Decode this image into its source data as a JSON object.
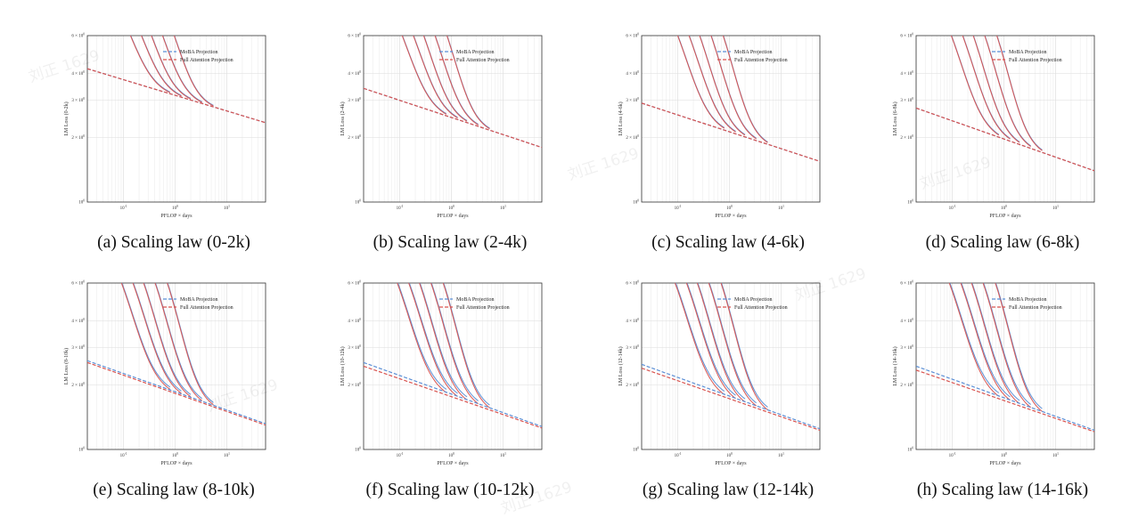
{
  "figure": {
    "panels": [
      {
        "caption": "(a) Scaling law (0-2k)"
      },
      {
        "caption": "(b) Scaling law (2-4k)"
      },
      {
        "caption": "(c) Scaling law (4-6k)"
      },
      {
        "caption": "(d) Scaling law (6-8k)"
      },
      {
        "caption": "(e) Scaling law (8-10k)"
      },
      {
        "caption": "(f) Scaling law (10-12k)"
      },
      {
        "caption": "(g) Scaling law (12-14k)"
      },
      {
        "caption": "(h) Scaling law (14-16k)"
      }
    ],
    "watermark": "刘正 1629"
  },
  "chart_data": [
    {
      "type": "line",
      "caption": "(a) Scaling law (0-2k)",
      "xlabel": "PFLOP × days",
      "ylabel": "LM Loss (0-2k)",
      "xscale": "log",
      "yscale": "log",
      "x_ticks": [
        "10^-1",
        "10^0",
        "10^1"
      ],
      "y_ticks": [
        "10^0",
        "2 × 10^0",
        "3 × 10^0",
        "4 × 10^0",
        "6 × 10^0"
      ],
      "ylim": [
        1,
        6
      ],
      "grid": true,
      "legend": "top-right",
      "series": [
        {
          "name": "MoBA Projection",
          "color": "#5a8fd6",
          "values_at_xlim": [
            4.2,
            2.35
          ]
        },
        {
          "name": "Full Attention Projection",
          "color": "#d9534f",
          "values_at_xlim": [
            4.2,
            2.35
          ]
        }
      ]
    },
    {
      "type": "line",
      "caption": "(b) Scaling law (2-4k)",
      "xlabel": "PFLOP × days",
      "ylabel": "LM Loss (2-4k)",
      "xscale": "log",
      "yscale": "log",
      "x_ticks": [
        "10^-1",
        "10^0",
        "10^1"
      ],
      "y_ticks": [
        "10^0",
        "2 × 10^0",
        "3 × 10^0",
        "4 × 10^0",
        "6 × 10^0"
      ],
      "ylim": [
        1,
        6
      ],
      "grid": true,
      "legend": "top-right",
      "series": [
        {
          "name": "MoBA Projection",
          "color": "#5a8fd6",
          "values_at_xlim": [
            3.4,
            1.8
          ]
        },
        {
          "name": "Full Attention Projection",
          "color": "#d9534f",
          "values_at_xlim": [
            3.4,
            1.8
          ]
        }
      ]
    },
    {
      "type": "line",
      "caption": "(c) Scaling law (4-6k)",
      "xlabel": "PFLOP × days",
      "ylabel": "LM Loss (4-6k)",
      "xscale": "log",
      "yscale": "log",
      "x_ticks": [
        "10^-1",
        "10^0",
        "10^1"
      ],
      "y_ticks": [
        "10^0",
        "2 × 10^0",
        "3 × 10^0",
        "4 × 10^0",
        "6 × 10^0"
      ],
      "ylim": [
        1,
        6
      ],
      "grid": true,
      "legend": "top-right",
      "series": [
        {
          "name": "MoBA Projection",
          "color": "#5a8fd6",
          "values_at_xlim": [
            2.9,
            1.55
          ]
        },
        {
          "name": "Full Attention Projection",
          "color": "#d9534f",
          "values_at_xlim": [
            2.9,
            1.55
          ]
        }
      ]
    },
    {
      "type": "line",
      "caption": "(d) Scaling law (6-8k)",
      "xlabel": "PFLOP × days",
      "ylabel": "LM Loss (6-8k)",
      "xscale": "log",
      "yscale": "log",
      "x_ticks": [
        "10^-1",
        "10^0",
        "10^1"
      ],
      "y_ticks": [
        "10^0",
        "2 × 10^0",
        "3 × 10^0",
        "4 × 10^0",
        "6 × 10^0"
      ],
      "ylim": [
        1,
        6
      ],
      "grid": true,
      "legend": "top-right",
      "series": [
        {
          "name": "MoBA Projection",
          "color": "#5a8fd6",
          "values_at_xlim": [
            2.75,
            1.4
          ]
        },
        {
          "name": "Full Attention Projection",
          "color": "#d9534f",
          "values_at_xlim": [
            2.75,
            1.4
          ]
        }
      ]
    },
    {
      "type": "line",
      "caption": "(e) Scaling law (8-10k)",
      "xlabel": "PFLOP × days",
      "ylabel": "LM Loss (8-10k)",
      "xscale": "log",
      "yscale": "log",
      "x_ticks": [
        "10^-1",
        "10^0",
        "10^1"
      ],
      "y_ticks": [
        "10^0",
        "2 × 10^0",
        "3 × 10^0",
        "4 × 10^0",
        "6 × 10^0"
      ],
      "ylim": [
        1,
        6
      ],
      "grid": true,
      "legend": "top-right",
      "series": [
        {
          "name": "MoBA Projection",
          "color": "#5a8fd6",
          "values_at_xlim": [
            2.6,
            1.32
          ]
        },
        {
          "name": "Full Attention Projection",
          "color": "#d9534f",
          "values_at_xlim": [
            2.55,
            1.3
          ]
        }
      ]
    },
    {
      "type": "line",
      "caption": "(f) Scaling law (10-12k)",
      "xlabel": "PFLOP × days",
      "ylabel": "LM Loss (10-12k)",
      "xscale": "log",
      "yscale": "log",
      "x_ticks": [
        "10^-1",
        "10^0",
        "10^1"
      ],
      "y_ticks": [
        "10^0",
        "2 × 10^0",
        "3 × 10^0",
        "4 × 10^0",
        "6 × 10^0"
      ],
      "ylim": [
        1,
        6
      ],
      "grid": true,
      "legend": "top-right",
      "series": [
        {
          "name": "MoBA Projection",
          "color": "#5a8fd6",
          "values_at_xlim": [
            2.55,
            1.28
          ]
        },
        {
          "name": "Full Attention Projection",
          "color": "#d9534f",
          "values_at_xlim": [
            2.45,
            1.26
          ]
        }
      ]
    },
    {
      "type": "line",
      "caption": "(g) Scaling law (12-14k)",
      "xlabel": "PFLOP × days",
      "ylabel": "LM Loss (12-14k)",
      "xscale": "log",
      "yscale": "log",
      "x_ticks": [
        "10^-1",
        "10^0",
        "10^1"
      ],
      "y_ticks": [
        "10^0",
        "2 × 10^0",
        "3 × 10^0",
        "4 × 10^0",
        "6 × 10^0"
      ],
      "ylim": [
        1,
        6
      ],
      "grid": true,
      "legend": "top-right",
      "series": [
        {
          "name": "MoBA Projection",
          "color": "#5a8fd6",
          "values_at_xlim": [
            2.5,
            1.25
          ]
        },
        {
          "name": "Full Attention Projection",
          "color": "#d9534f",
          "values_at_xlim": [
            2.4,
            1.23
          ]
        }
      ]
    },
    {
      "type": "line",
      "caption": "(h) Scaling law (14-16k)",
      "xlabel": "PFLOP × days",
      "ylabel": "LM Loss (14-16k)",
      "xscale": "log",
      "yscale": "log",
      "x_ticks": [
        "10^-1",
        "10^0",
        "10^1"
      ],
      "y_ticks": [
        "10^0",
        "2 × 10^0",
        "3 × 10^0",
        "4 × 10^0",
        "6 × 10^0"
      ],
      "ylim": [
        1,
        6
      ],
      "grid": true,
      "legend": "top-right",
      "series": [
        {
          "name": "MoBA Projection",
          "color": "#5a8fd6",
          "values_at_xlim": [
            2.45,
            1.23
          ]
        },
        {
          "name": "Full Attention Projection",
          "color": "#d9534f",
          "values_at_xlim": [
            2.35,
            1.21
          ]
        }
      ]
    }
  ]
}
